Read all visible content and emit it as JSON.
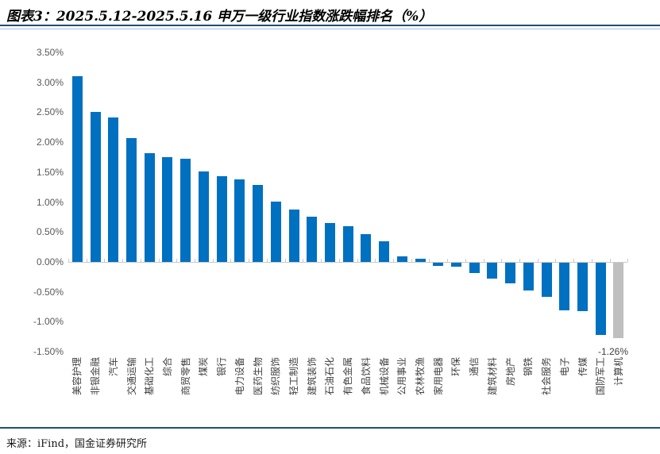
{
  "header": {
    "title": "图表3：2025.5.12-2025.5.16 申万一级行业指数涨跌幅排名（%）"
  },
  "footer": {
    "source": "来源：iFind，国金证券研究所"
  },
  "colors": {
    "bar_default": "#0070C0",
    "bar_muted": "#BFBFBF",
    "rule_navy": "#1F4E79",
    "axis_gray": "#C9C9C9",
    "label_text": "#404040"
  },
  "chart_data": {
    "type": "bar",
    "title": "2025.5.12-2025.5.16 申万一级行业指数涨跌幅排名（%）",
    "xlabel": "",
    "ylabel": "",
    "ylim": [
      -1.5,
      3.5
    ],
    "grid": false,
    "legend_position": "none",
    "y_tick_labels": [
      "3.50%",
      "3.00%",
      "2.50%",
      "2.00%",
      "1.50%",
      "1.00%",
      "0.50%",
      "0.00%",
      "-0.50%",
      "-1.00%",
      "-1.50%"
    ],
    "categories": [
      "美容护理",
      "非银金融",
      "汽车",
      "交通运输",
      "基础化工",
      "综合",
      "商贸零售",
      "煤炭",
      "银行",
      "电力设备",
      "医药生物",
      "纺织服饰",
      "轻工制造",
      "建筑装饰",
      "石油石化",
      "有色金属",
      "食品饮料",
      "机械设备",
      "公用事业",
      "农林牧渔",
      "家用电器",
      "环保",
      "通信",
      "建筑材料",
      "房地产",
      "钢铁",
      "社会服务",
      "电子",
      "传媒",
      "国防军工",
      "计算机"
    ],
    "values": [
      3.1,
      2.51,
      2.42,
      2.07,
      1.82,
      1.75,
      1.72,
      1.51,
      1.43,
      1.38,
      1.28,
      1.01,
      0.87,
      0.76,
      0.65,
      0.6,
      0.46,
      0.35,
      0.09,
      0.05,
      -0.05,
      -0.06,
      -0.17,
      -0.27,
      -0.35,
      -0.47,
      -0.57,
      -0.79,
      -0.81,
      -1.21,
      -1.26
    ],
    "muted_bar_index": 30,
    "annotation": {
      "text": "-1.26%",
      "category": "计算机"
    }
  }
}
